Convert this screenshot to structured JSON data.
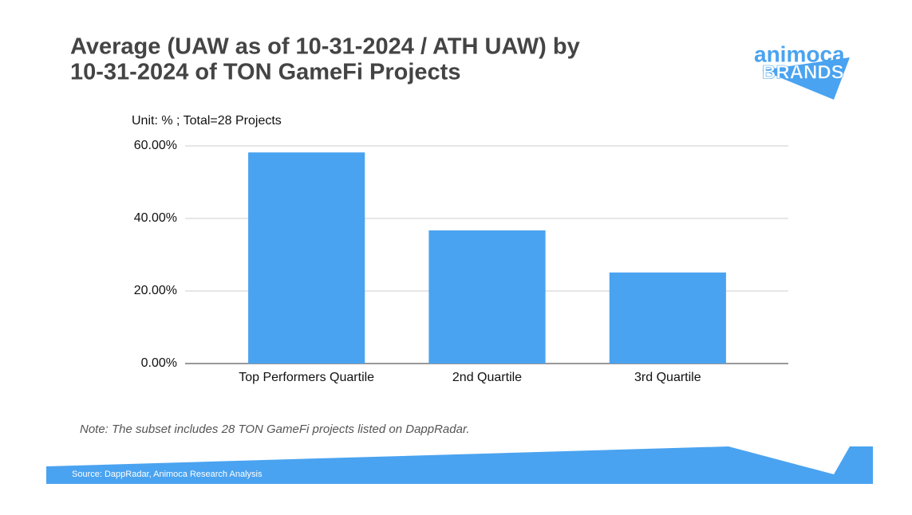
{
  "logo": {
    "top": "animoca",
    "bottom": "BRANDS"
  },
  "chart_data": {
    "type": "bar",
    "title": [
      "Average (UAW as of 10-31-2024 / ATH UAW) by",
      "10-31-2024 of TON GameFi Projects"
    ],
    "unit_label": "Unit: % ; Total=28 Projects",
    "categories": [
      "Top Performers Quartile",
      "2nd Quartile",
      "3rd Quartile"
    ],
    "values": [
      58.2,
      36.7,
      25.1
    ],
    "color": "#4aa3f0",
    "ylim": [
      0,
      60
    ],
    "yticks": [
      {
        "value": 0,
        "label": "0.00%"
      },
      {
        "value": 20,
        "label": "20.00%"
      },
      {
        "value": 40,
        "label": "40.00%"
      },
      {
        "value": 60,
        "label": "60.00%"
      }
    ],
    "grid": true
  },
  "note": "Note: The subset includes 28 TON GameFi projects listed on DappRadar.",
  "source": "Source: DappRadar, Animoca Research Analysis"
}
